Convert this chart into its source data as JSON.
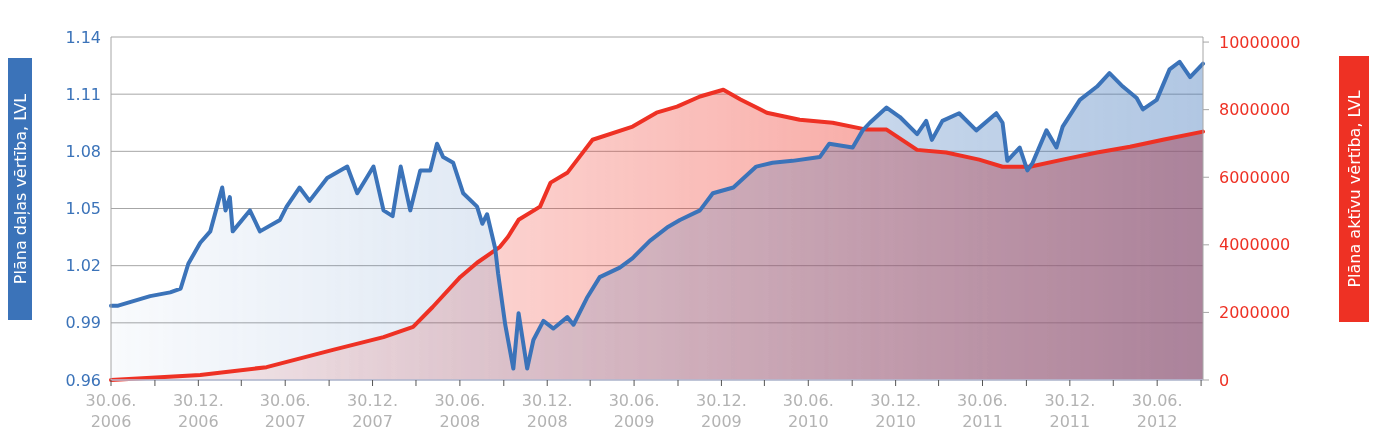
{
  "chart_data": {
    "type": "area",
    "ylabel": "Plāna daļas vērtība, LVL",
    "y2label": "Plāna aktīvu vērtība, LVL",
    "grid": "y",
    "xlim": [
      "2006-06-30",
      "2012-10-04"
    ],
    "xticks": [
      {
        "value": "2006-06-30",
        "label": "30.06. 2006"
      },
      {
        "value": "2006-09-30",
        "label": null
      },
      {
        "value": "2006-12-30",
        "label": "30.12. 2006"
      },
      {
        "value": "2007-03-30",
        "label": null
      },
      {
        "value": "2007-06-30",
        "label": "30.06. 2007"
      },
      {
        "value": "2007-09-30",
        "label": null
      },
      {
        "value": "2007-12-30",
        "label": "30.12. 2007"
      },
      {
        "value": "2008-03-30",
        "label": null
      },
      {
        "value": "2008-06-30",
        "label": "30.06. 2008"
      },
      {
        "value": "2008-09-30",
        "label": null
      },
      {
        "value": "2008-12-30",
        "label": "30.12. 2008"
      },
      {
        "value": "2009-03-30",
        "label": null
      },
      {
        "value": "2009-06-30",
        "label": "30.06. 2009"
      },
      {
        "value": "2009-09-30",
        "label": null
      },
      {
        "value": "2009-12-30",
        "label": "30.12. 2009"
      },
      {
        "value": "2010-03-30",
        "label": null
      },
      {
        "value": "2010-06-30",
        "label": "30.06. 2010"
      },
      {
        "value": "2010-09-30",
        "label": null
      },
      {
        "value": "2010-12-30",
        "label": "30.12. 2010"
      },
      {
        "value": "2011-03-30",
        "label": null
      },
      {
        "value": "2011-06-30",
        "label": "30.06. 2011"
      },
      {
        "value": "2011-09-30",
        "label": null
      },
      {
        "value": "2011-12-30",
        "label": "30.12. 2011"
      },
      {
        "value": "2012-03-30",
        "label": null
      },
      {
        "value": "2012-06-30",
        "label": "30.06. 2012"
      },
      {
        "value": "2012-09-30",
        "label": null
      }
    ],
    "ylim": [
      0.96,
      1.14
    ],
    "yticks": [
      0.96,
      0.99,
      1.02,
      1.05,
      1.08,
      1.11,
      1.14
    ],
    "y2lim": [
      0,
      10150000
    ],
    "y2ticks": [
      0,
      2000000,
      4000000,
      6000000,
      8000000,
      10000000
    ],
    "series": [
      {
        "color": "#3b73b9",
        "x": [
          "2006-06-30",
          "2006-07-15",
          "2006-09-20",
          "2006-11-01",
          "2006-11-23",
          "2006-12-09",
          "2007-01-03",
          "2007-01-24",
          "2007-02-18",
          "2007-02-25",
          "2007-03-06",
          "2007-03-12",
          "2007-04-17",
          "2007-05-08",
          "2007-06-19",
          "2007-07-03",
          "2007-07-30",
          "2007-08-20",
          "2007-09-26",
          "2007-11-07",
          "2007-11-28",
          "2008-01-01",
          "2008-01-22",
          "2008-02-10",
          "2008-02-27",
          "2008-03-18",
          "2008-04-08",
          "2008-04-29",
          "2008-05-13",
          "2008-05-26",
          "2008-06-16",
          "2008-07-07",
          "2008-08-05",
          "2008-08-16",
          "2008-08-26",
          "2008-09-12",
          "2008-09-18",
          "2008-10-03",
          "2008-10-20",
          "2008-10-31",
          "2008-11-18",
          "2008-12-01",
          "2008-12-22",
          "2009-01-12",
          "2009-02-10",
          "2009-02-23",
          "2009-03-23",
          "2009-04-19",
          "2009-05-31",
          "2009-06-27",
          "2009-08-02",
          "2009-09-07",
          "2009-10-04",
          "2009-11-15",
          "2009-12-12",
          "2010-01-24",
          "2010-03-13",
          "2010-04-16",
          "2010-05-28",
          "2010-07-24",
          "2010-08-13",
          "2010-10-01",
          "2010-10-22",
          "2010-11-06",
          "2010-12-11",
          "2011-01-08",
          "2011-02-13",
          "2011-03-04",
          "2011-03-16",
          "2011-04-07",
          "2011-05-12",
          "2011-06-17",
          "2011-07-29",
          "2011-08-11",
          "2011-08-21",
          "2011-09-16",
          "2011-10-02",
          "2011-10-13",
          "2011-11-11",
          "2011-12-02",
          "2011-12-15",
          "2012-01-20",
          "2012-02-25",
          "2012-03-22",
          "2012-04-19",
          "2012-05-18",
          "2012-05-31",
          "2012-06-29",
          "2012-07-26",
          "2012-08-16",
          "2012-09-07",
          "2012-10-04"
        ],
        "values": [
          0.999,
          0.999,
          1.004,
          1.006,
          1.008,
          1.021,
          1.032,
          1.038,
          1.061,
          1.049,
          1.056,
          1.038,
          1.049,
          1.038,
          1.044,
          1.051,
          1.061,
          1.054,
          1.066,
          1.072,
          1.058,
          1.072,
          1.049,
          1.046,
          1.072,
          1.049,
          1.07,
          1.07,
          1.084,
          1.077,
          1.074,
          1.058,
          1.051,
          1.042,
          1.047,
          1.029,
          1.016,
          0.989,
          0.966,
          0.995,
          0.966,
          0.981,
          0.991,
          0.987,
          0.993,
          0.989,
          1.003,
          1.014,
          1.019,
          1.024,
          1.033,
          1.04,
          1.044,
          1.049,
          1.058,
          1.061,
          1.072,
          1.074,
          1.075,
          1.077,
          1.084,
          1.082,
          1.091,
          1.095,
          1.103,
          1.098,
          1.089,
          1.096,
          1.086,
          1.096,
          1.1,
          1.091,
          1.1,
          1.095,
          1.075,
          1.082,
          1.07,
          1.074,
          1.091,
          1.082,
          1.093,
          1.107,
          1.114,
          1.121,
          1.114,
          1.108,
          1.102,
          1.107,
          1.123,
          1.127,
          1.119,
          1.126
        ]
      },
      {
        "color": "#ee3124",
        "axis": "y2",
        "x": [
          "2006-06-30",
          "2007-01-03",
          "2007-05-22",
          "2007-10-08",
          "2008-01-22",
          "2008-03-24",
          "2008-05-04",
          "2008-07-01",
          "2008-08-05",
          "2008-09-22",
          "2008-10-09",
          "2008-10-31",
          "2008-12-15",
          "2009-01-06",
          "2009-02-10",
          "2009-03-08",
          "2009-04-04",
          "2009-06-27",
          "2009-08-16",
          "2009-09-28",
          "2009-11-15",
          "2010-01-03",
          "2010-02-08",
          "2010-04-04",
          "2010-06-12",
          "2010-08-20",
          "2010-10-30",
          "2010-12-11",
          "2011-02-13",
          "2011-04-15",
          "2011-06-23",
          "2011-08-11",
          "2011-10-07",
          "2011-12-15",
          "2012-02-25",
          "2012-05-04",
          "2012-07-12",
          "2012-10-04"
        ],
        "values": [
          0,
          150000,
          380000,
          890000,
          1270000,
          1570000,
          2160000,
          3050000,
          3470000,
          3940000,
          4240000,
          4740000,
          5130000,
          5840000,
          6130000,
          6610000,
          7110000,
          7500000,
          7910000,
          8090000,
          8390000,
          8590000,
          8300000,
          7910000,
          7700000,
          7610000,
          7410000,
          7410000,
          6810000,
          6730000,
          6520000,
          6310000,
          6310000,
          6520000,
          6730000,
          6900000,
          7110000,
          7350000
        ]
      }
    ]
  }
}
